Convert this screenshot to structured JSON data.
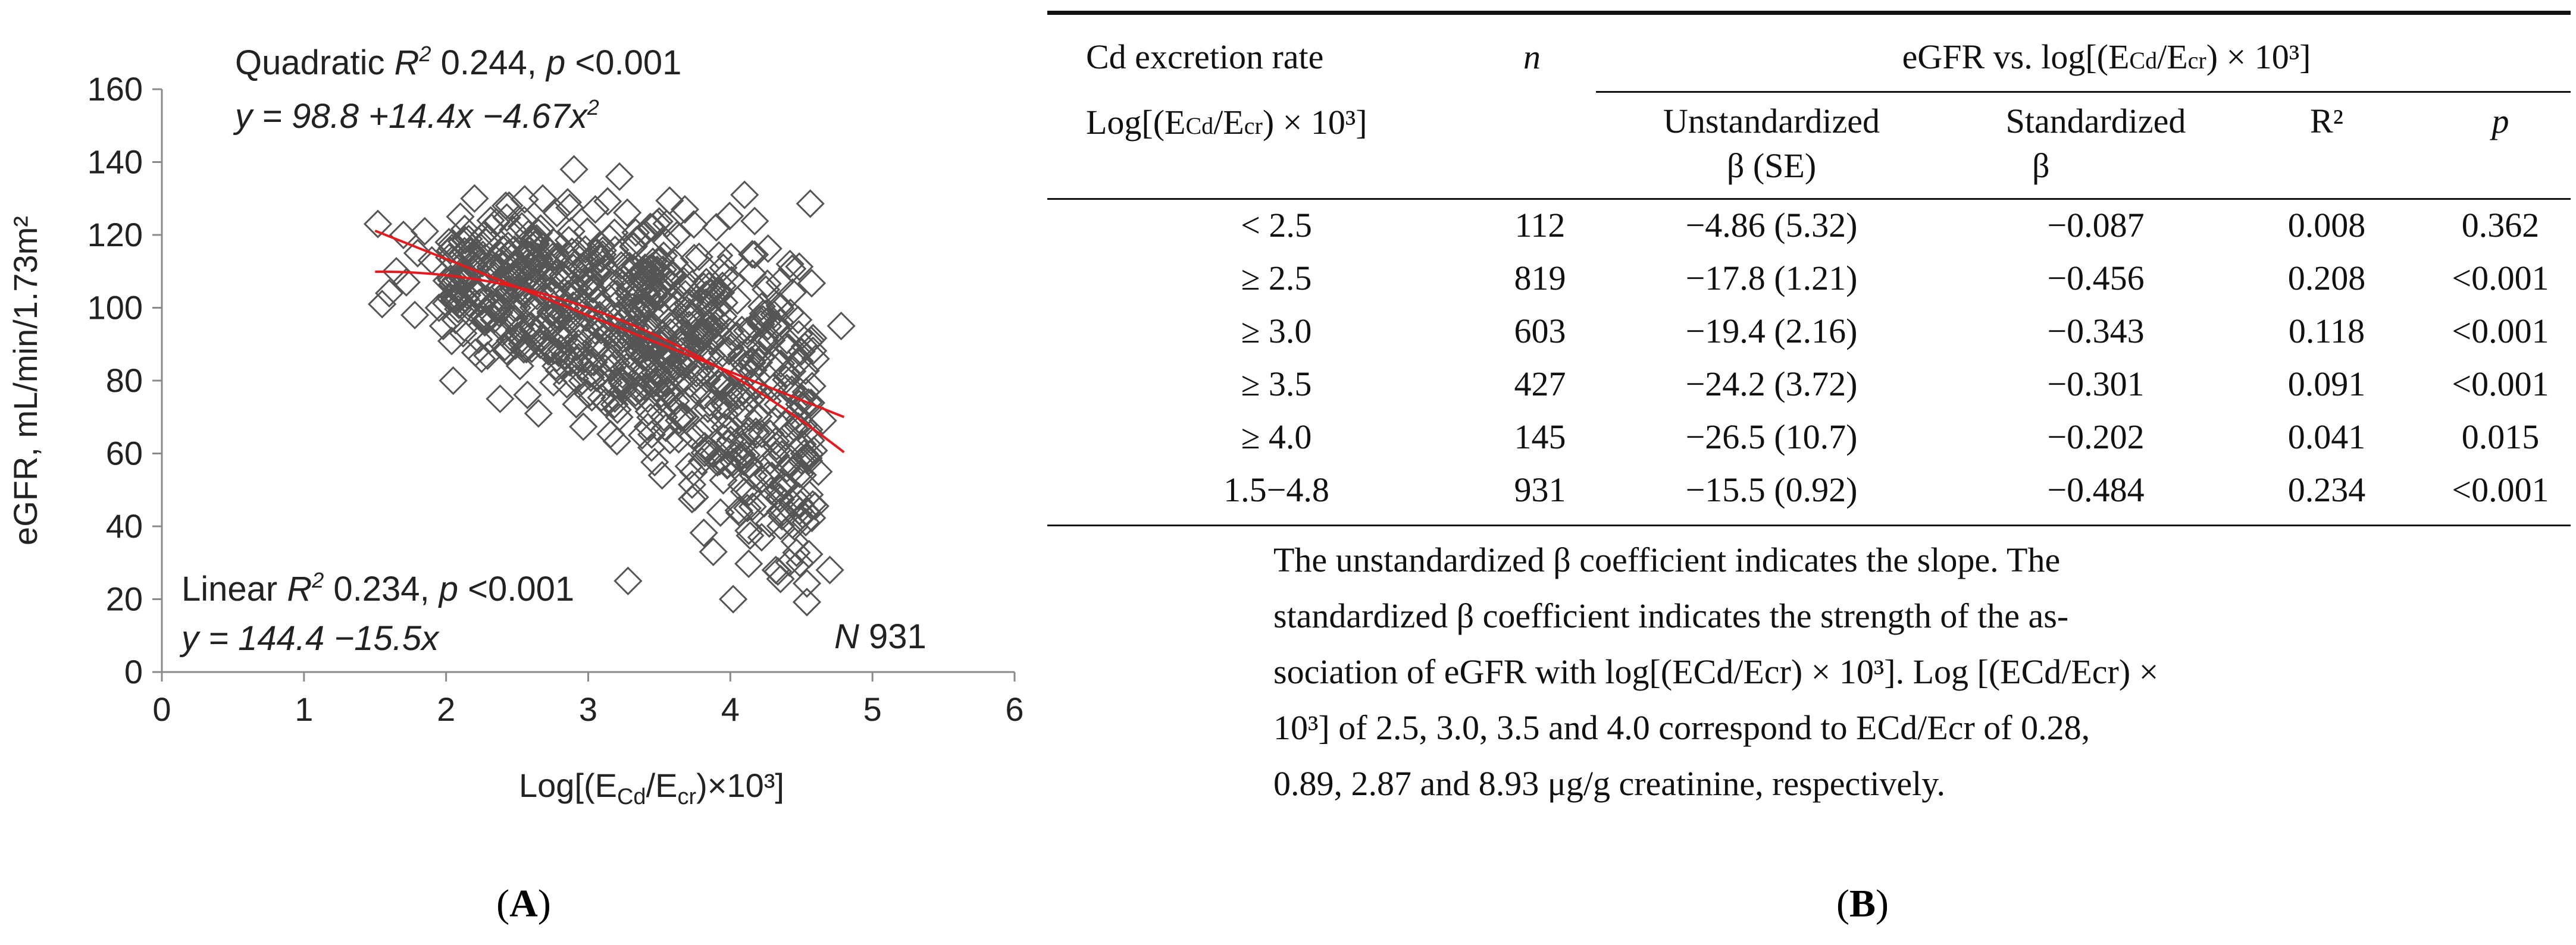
{
  "panel_a_label": "A",
  "panel_b_label": "B",
  "chart_data": {
    "type": "scatter",
    "title": "",
    "xlabel": "Log[(ECd/Ecr)×10³]",
    "ylabel": "eGFR, mL/min/1.73m²",
    "xlim": [
      0,
      6
    ],
    "ylim": [
      0,
      160
    ],
    "xticks": [
      "0",
      "1",
      "2",
      "3",
      "4",
      "5",
      "6"
    ],
    "yticks": [
      "0",
      "20",
      "40",
      "60",
      "80",
      "100",
      "120",
      "140",
      "160"
    ],
    "marker": "diamond",
    "n_label": "N 931",
    "quadratic": {
      "label": "Quadratic",
      "r2_label": "R",
      "r2_value": "0.244",
      "p_text": "p <0.001",
      "equation": "y = 98.8 +14.4x −4.67x",
      "coefficients": [
        98.8,
        14.4,
        -4.67
      ],
      "x_range": [
        1.5,
        4.8
      ],
      "color": "#e8191c"
    },
    "linear": {
      "label": "Linear",
      "r2_label": "R",
      "r2_value": "0.234",
      "p_text": "p <0.001",
      "equation": "y = 144.4 −15.5x",
      "coefficients": [
        144.4,
        -15.5
      ],
      "x_range": [
        1.5,
        4.8
      ],
      "color": "#e8191c"
    },
    "points": [
      [
        1.52,
        123
      ],
      [
        1.55,
        101
      ],
      [
        1.6,
        104
      ],
      [
        1.65,
        110
      ],
      [
        1.7,
        120
      ],
      [
        1.72,
        107
      ],
      [
        1.78,
        98
      ],
      [
        1.8,
        115
      ],
      [
        1.85,
        121
      ],
      [
        1.9,
        113
      ],
      [
        1.95,
        100
      ],
      [
        1.98,
        95
      ],
      [
        2.02,
        118
      ],
      [
        2.05,
        80
      ],
      [
        2.08,
        102
      ],
      [
        2.1,
        125
      ],
      [
        2.12,
        93
      ],
      [
        2.15,
        109
      ],
      [
        2.18,
        112
      ],
      [
        2.2,
        130
      ],
      [
        2.22,
        104
      ],
      [
        2.25,
        86
      ],
      [
        2.28,
        118
      ],
      [
        2.3,
        97
      ],
      [
        2.32,
        122
      ],
      [
        2.35,
        105
      ],
      [
        2.38,
        75
      ],
      [
        2.4,
        112
      ],
      [
        2.42,
        128
      ],
      [
        2.45,
        91
      ],
      [
        2.48,
        116
      ],
      [
        2.5,
        100
      ],
      [
        2.52,
        84
      ],
      [
        2.55,
        124
      ],
      [
        2.58,
        108
      ],
      [
        2.6,
        95
      ],
      [
        2.62,
        119
      ],
      [
        2.65,
        71
      ],
      [
        2.68,
        130
      ],
      [
        2.7,
        103
      ],
      [
        2.72,
        88
      ],
      [
        2.75,
        114
      ],
      [
        2.78,
        126
      ],
      [
        2.8,
        97
      ],
      [
        2.82,
        109
      ],
      [
        2.85,
        79
      ],
      [
        2.88,
        121
      ],
      [
        2.9,
        138
      ],
      [
        2.92,
        101
      ],
      [
        2.95,
        92
      ],
      [
        2.98,
        116
      ],
      [
        3.0,
        107
      ],
      [
        3.02,
        85
      ],
      [
        3.05,
        127
      ],
      [
        3.08,
        98
      ],
      [
        3.1,
        112
      ],
      [
        3.12,
        74
      ],
      [
        3.15,
        119
      ],
      [
        3.18,
        104
      ],
      [
        3.2,
        91
      ],
      [
        3.22,
        136
      ],
      [
        3.25,
        108
      ],
      [
        3.28,
        25
      ],
      [
        3.3,
        83
      ],
      [
        3.32,
        117
      ],
      [
        3.35,
        99
      ],
      [
        3.38,
        65
      ],
      [
        3.4,
        111
      ],
      [
        3.42,
        94
      ],
      [
        3.45,
        122
      ],
      [
        3.48,
        78
      ],
      [
        3.5,
        103
      ],
      [
        3.52,
        54
      ],
      [
        3.55,
        118
      ],
      [
        3.58,
        88
      ],
      [
        3.6,
        109
      ],
      [
        3.62,
        96
      ],
      [
        3.65,
        70
      ],
      [
        3.68,
        127
      ],
      [
        3.7,
        101
      ],
      [
        3.72,
        84
      ],
      [
        3.75,
        48
      ],
      [
        3.78,
        114
      ],
      [
        3.8,
        92
      ],
      [
        3.82,
        62
      ],
      [
        3.85,
        106
      ],
      [
        3.88,
        33
      ],
      [
        3.9,
        97
      ],
      [
        3.92,
        79
      ],
      [
        3.95,
        111
      ],
      [
        3.98,
        57
      ],
      [
        4.0,
        89
      ],
      [
        4.02,
        20
      ],
      [
        4.05,
        102
      ],
      [
        4.08,
        72
      ],
      [
        4.1,
        131
      ],
      [
        4.12,
        45
      ],
      [
        4.15,
        94
      ],
      [
        4.18,
        66
      ],
      [
        4.2,
        85
      ],
      [
        4.22,
        37
      ],
      [
        4.25,
        105
      ],
      [
        4.28,
        58
      ],
      [
        4.3,
        78
      ],
      [
        4.32,
        28
      ],
      [
        4.35,
        96
      ],
      [
        4.38,
        51
      ],
      [
        4.4,
        82
      ],
      [
        4.42,
        112
      ],
      [
        4.45,
        67
      ],
      [
        4.48,
        42
      ],
      [
        4.5,
        88
      ],
      [
        4.52,
        60
      ],
      [
        4.55,
        74
      ],
      [
        4.58,
        46
      ],
      [
        4.6,
        86
      ],
      [
        4.62,
        55
      ],
      [
        4.65,
        69
      ],
      [
        4.7,
        28
      ],
      [
        4.78,
        95
      ]
    ]
  },
  "table": {
    "headers": {
      "col1_line1": "Cd excretion rate",
      "col1_line2_prefix": "Log[(E",
      "col1_line2_sub1": "Cd",
      "col1_line2_mid": "/E",
      "col1_line2_sub2": "cr",
      "col1_line2_suffix": ") × 10³]",
      "col2": "n",
      "group_prefix": "eGFR vs. log[(E",
      "group_sub1": "Cd",
      "group_mid": "/E",
      "group_sub2": "cr",
      "group_suffix": ") × 10³]",
      "unstd_line1": "Unstandardized",
      "unstd_line2": "β (SE)",
      "std_line1": "Standardized",
      "std_line2": "β",
      "r2": "R²",
      "p": "p"
    },
    "rows": [
      {
        "range": "< 2.5",
        "n": "112",
        "beta": "−4.86 (5.32)",
        "std": "−0.087",
        "r2": "0.008",
        "p": "0.362"
      },
      {
        "range": "≥ 2.5",
        "n": "819",
        "beta": "−17.8 (1.21)",
        "std": "−0.456",
        "r2": "0.208",
        "p": "<0.001"
      },
      {
        "range": "≥ 3.0",
        "n": "603",
        "beta": "−19.4 (2.16)",
        "std": "−0.343",
        "r2": "0.118",
        "p": "<0.001"
      },
      {
        "range": "≥ 3.5",
        "n": "427",
        "beta": "−24.2 (3.72)",
        "std": "−0.301",
        "r2": "0.091",
        "p": "<0.001"
      },
      {
        "range": "≥ 4.0",
        "n": "145",
        "beta": "−26.5 (10.7)",
        "std": "−0.202",
        "r2": "0.041",
        "p": "0.015"
      },
      {
        "range": "1.5−4.8",
        "n": "931",
        "beta": "−15.5 (0.92)",
        "std": "−0.484",
        "r2": "0.234",
        "p": "<0.001"
      }
    ],
    "note_line1": "The unstandardized β coefficient indicates the slope. The",
    "note_line2": "standardized β coefficient indicates the strength of the as-",
    "note_line3": "sociation of eGFR with log[(ECd/Ecr) × 10³]. Log [(ECd/Ecr) ×",
    "note_line4": "10³] of 2.5, 3.0, 3.5 and 4.0 correspond to ECd/Ecr of 0.28,",
    "note_line5": "0.89, 2.87 and 8.93 μg/g creatinine, respectively."
  }
}
